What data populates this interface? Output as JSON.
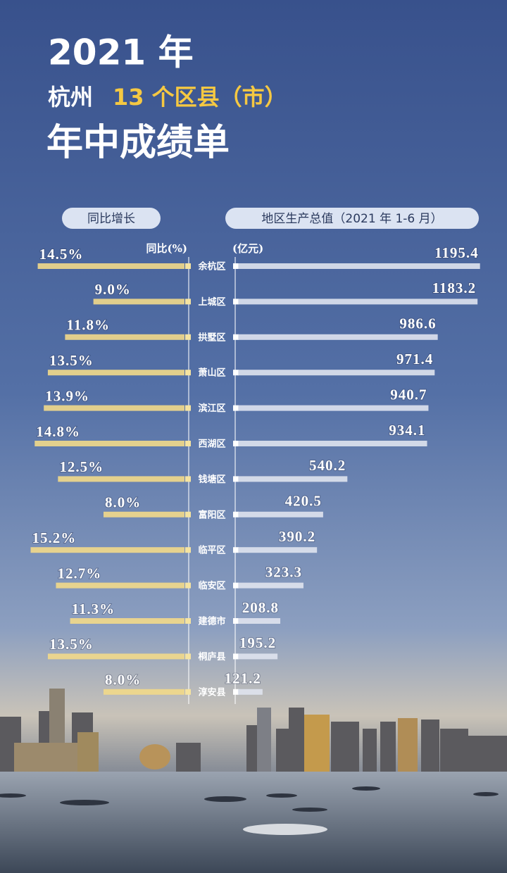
{
  "header": {
    "year": "2021 年",
    "city": "杭州",
    "subtitle": "13 个区县（市）",
    "title": "年中成绩单"
  },
  "chart_data": {
    "type": "butterfly",
    "categories": [
      "余杭区",
      "上城区",
      "拱墅区",
      "萧山区",
      "滨江区",
      "西湖区",
      "钱塘区",
      "富阳区",
      "临平区",
      "临安区",
      "建德市",
      "桐庐县",
      "淳安县"
    ],
    "series": [
      {
        "name": "同比增长",
        "axis_label": "同比(%)",
        "color": "#f2d98a",
        "side": "left",
        "xlim": [
          0,
          16
        ],
        "values": [
          14.5,
          9.0,
          11.8,
          13.5,
          13.9,
          14.8,
          12.5,
          8.0,
          15.2,
          12.7,
          11.3,
          13.5,
          8.0
        ],
        "value_labels": [
          "14.5%",
          "9.0%",
          "11.8%",
          "13.5%",
          "13.9%",
          "14.8%",
          "12.5%",
          "8.0%",
          "15.2%",
          "12.7%",
          "11.3%",
          "13.5%",
          "8.0%"
        ]
      },
      {
        "name": "地区生产总值（2021 年 1-6 月）",
        "axis_label": "(亿元)",
        "color": "#dfe3ee",
        "side": "right",
        "xlim": [
          0,
          1200
        ],
        "values": [
          1195.4,
          1183.2,
          986.6,
          971.4,
          940.7,
          934.1,
          540.2,
          420.5,
          390.2,
          323.3,
          208.8,
          195.2,
          121.2
        ]
      }
    ]
  }
}
